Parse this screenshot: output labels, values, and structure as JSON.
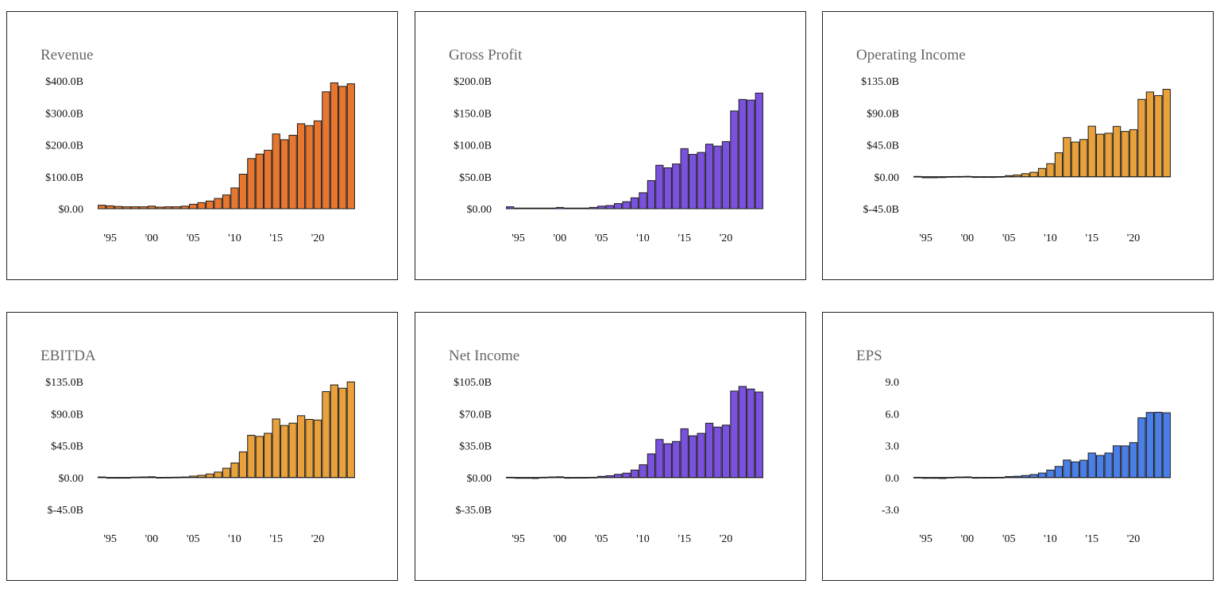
{
  "chart_data": [
    {
      "type": "bar",
      "title": "Revenue",
      "color": "#e8762f",
      "x": [
        1994,
        1995,
        1996,
        1997,
        1998,
        1999,
        2000,
        2001,
        2002,
        2003,
        2004,
        2005,
        2006,
        2007,
        2008,
        2009,
        2010,
        2011,
        2012,
        2013,
        2014,
        2015,
        2016,
        2017,
        2018,
        2019,
        2020,
        2021,
        2022,
        2023,
        2024
      ],
      "values": [
        11,
        9,
        7,
        6,
        6,
        6,
        8,
        5,
        6,
        6,
        8,
        14,
        19,
        24,
        32,
        43,
        65,
        108,
        157,
        171,
        183,
        234,
        216,
        230,
        266,
        260,
        275,
        366,
        394,
        383,
        391
      ],
      "unit": "B",
      "xticks": [
        "'95",
        "'00",
        "'05",
        "'10",
        "'15",
        "'20"
      ],
      "xtick_years": [
        1995,
        2000,
        2005,
        2010,
        2015,
        2020
      ],
      "yticks": [
        "$400.0B",
        "$300.0B",
        "$200.0B",
        "$100.0B",
        "$0.00"
      ],
      "ytick_values": [
        400,
        300,
        200,
        100,
        0
      ],
      "ylim": [
        0,
        400
      ],
      "grid": false
    },
    {
      "type": "bar",
      "title": "Gross Profit",
      "color": "#7b52e0",
      "x": [
        1994,
        1995,
        1996,
        1997,
        1998,
        1999,
        2000,
        2001,
        2002,
        2003,
        2004,
        2005,
        2006,
        2007,
        2008,
        2009,
        2010,
        2011,
        2012,
        2013,
        2014,
        2015,
        2016,
        2017,
        2018,
        2019,
        2020,
        2021,
        2022,
        2023,
        2024
      ],
      "values": [
        3,
        1,
        1,
        1,
        1,
        1,
        2,
        1,
        1,
        1,
        2,
        4,
        5,
        8,
        11,
        17,
        25,
        44,
        68,
        64,
        70,
        94,
        85,
        88,
        101,
        98,
        105,
        153,
        171,
        170,
        181
      ],
      "unit": "B",
      "xticks": [
        "'95",
        "'00",
        "'05",
        "'10",
        "'15",
        "'20"
      ],
      "xtick_years": [
        1995,
        2000,
        2005,
        2010,
        2015,
        2020
      ],
      "yticks": [
        "$200.0B",
        "$150.0B",
        "$100.0B",
        "$50.0B",
        "$0.00"
      ],
      "ytick_values": [
        200,
        150,
        100,
        50,
        0
      ],
      "ylim": [
        0,
        200
      ],
      "grid": false
    },
    {
      "type": "bar",
      "title": "Operating Income",
      "color": "#e9a13b",
      "x": [
        1994,
        1995,
        1996,
        1997,
        1998,
        1999,
        2000,
        2001,
        2002,
        2003,
        2004,
        2005,
        2006,
        2007,
        2008,
        2009,
        2010,
        2011,
        2012,
        2013,
        2014,
        2015,
        2016,
        2017,
        2018,
        2019,
        2020,
        2021,
        2022,
        2023,
        2024
      ],
      "values": [
        0.5,
        -1.4,
        -1.4,
        -1.1,
        0.3,
        0.4,
        0.6,
        -0.3,
        0,
        0,
        0.3,
        1.6,
        2.5,
        4.4,
        6.3,
        11.7,
        18.4,
        33.8,
        55.2,
        48.9,
        52.5,
        71.2,
        60.0,
        61.3,
        70.9,
        63.9,
        66.3,
        109.0,
        119.4,
        114.3,
        123.2
      ],
      "unit": "B",
      "xticks": [
        "'95",
        "'00",
        "'05",
        "'10",
        "'15",
        "'20"
      ],
      "xtick_years": [
        1995,
        2000,
        2005,
        2010,
        2015,
        2020
      ],
      "yticks": [
        "$135.0B",
        "$90.0B",
        "$45.0B",
        "$0.00",
        "$-45.0B"
      ],
      "ytick_values": [
        135,
        90,
        45,
        0,
        -45
      ],
      "ylim": [
        -45,
        135
      ],
      "grid": false
    },
    {
      "type": "bar",
      "title": "EBITDA",
      "color": "#e9a13b",
      "x": [
        1994,
        1995,
        1996,
        1997,
        1998,
        1999,
        2000,
        2001,
        2002,
        2003,
        2004,
        2005,
        2006,
        2007,
        2008,
        2009,
        2010,
        2011,
        2012,
        2013,
        2014,
        2015,
        2016,
        2017,
        2018,
        2019,
        2020,
        2021,
        2022,
        2023,
        2024
      ],
      "values": [
        0.8,
        -0.9,
        -0.9,
        -0.4,
        0.6,
        0.8,
        1.1,
        0.2,
        0.3,
        0.5,
        0.8,
        2.0,
        3.1,
        5.0,
        7.7,
        13.1,
        20.5,
        36.1,
        59.5,
        57.9,
        62.3,
        82.5,
        73.3,
        76.6,
        87.1,
        81.9,
        81.0,
        121.0,
        130.5,
        125.8,
        134.7
      ],
      "unit": "B",
      "xticks": [
        "'95",
        "'00",
        "'05",
        "'10",
        "'15",
        "'20"
      ],
      "xtick_years": [
        1995,
        2000,
        2005,
        2010,
        2015,
        2020
      ],
      "yticks": [
        "$135.0B",
        "$90.0B",
        "$45.0B",
        "$0.00",
        "$-45.0B"
      ],
      "ytick_values": [
        135,
        90,
        45,
        0,
        -45
      ],
      "ylim": [
        -45,
        135
      ],
      "grid": false
    },
    {
      "type": "bar",
      "title": "Net Income",
      "color": "#7b52e0",
      "x": [
        1994,
        1995,
        1996,
        1997,
        1998,
        1999,
        2000,
        2001,
        2002,
        2003,
        2004,
        2005,
        2006,
        2007,
        2008,
        2009,
        2010,
        2011,
        2012,
        2013,
        2014,
        2015,
        2016,
        2017,
        2018,
        2019,
        2020,
        2021,
        2022,
        2023,
        2024
      ],
      "values": [
        0.3,
        -0.8,
        -0.8,
        -1.0,
        0.3,
        0.6,
        0.8,
        -0.03,
        0.07,
        0.07,
        0.28,
        1.3,
        2.0,
        3.5,
        4.8,
        8.2,
        14.0,
        25.9,
        41.7,
        37.0,
        39.5,
        53.4,
        45.7,
        48.4,
        59.5,
        55.3,
        57.4,
        94.7,
        99.8,
        97.0,
        93.7
      ],
      "unit": "B",
      "xticks": [
        "'95",
        "'00",
        "'05",
        "'10",
        "'15",
        "'20"
      ],
      "xtick_years": [
        1995,
        2000,
        2005,
        2010,
        2015,
        2020
      ],
      "yticks": [
        "$105.0B",
        "$70.0B",
        "$35.0B",
        "$0.00",
        "$-35.0B"
      ],
      "ytick_values": [
        105,
        70,
        35,
        0,
        -35
      ],
      "ylim": [
        -35,
        105
      ],
      "grid": false
    },
    {
      "type": "bar",
      "title": "EPS",
      "color": "#4a7fe8",
      "x": [
        1994,
        1995,
        1996,
        1997,
        1998,
        1999,
        2000,
        2001,
        2002,
        2003,
        2004,
        2005,
        2006,
        2007,
        2008,
        2009,
        2010,
        2011,
        2012,
        2013,
        2014,
        2015,
        2016,
        2017,
        2018,
        2019,
        2020,
        2021,
        2022,
        2023,
        2024
      ],
      "values": [
        0.02,
        -0.07,
        -0.07,
        -0.09,
        0.02,
        0.05,
        0.06,
        0,
        0.01,
        0.01,
        0.02,
        0.09,
        0.12,
        0.19,
        0.28,
        0.42,
        0.7,
        1.04,
        1.64,
        1.47,
        1.62,
        2.3,
        2.07,
        2.3,
        2.98,
        2.97,
        3.28,
        5.61,
        6.11,
        6.13,
        6.08
      ],
      "unit": "",
      "xticks": [
        "'95",
        "'00",
        "'05",
        "'10",
        "'15",
        "'20"
      ],
      "xtick_years": [
        1995,
        2000,
        2005,
        2010,
        2015,
        2020
      ],
      "yticks": [
        "9.0",
        "6.0",
        "3.0",
        "0.0",
        "-3.0"
      ],
      "ytick_values": [
        9,
        6,
        3,
        0,
        -3
      ],
      "ylim": [
        -3,
        9
      ],
      "grid": false
    }
  ]
}
